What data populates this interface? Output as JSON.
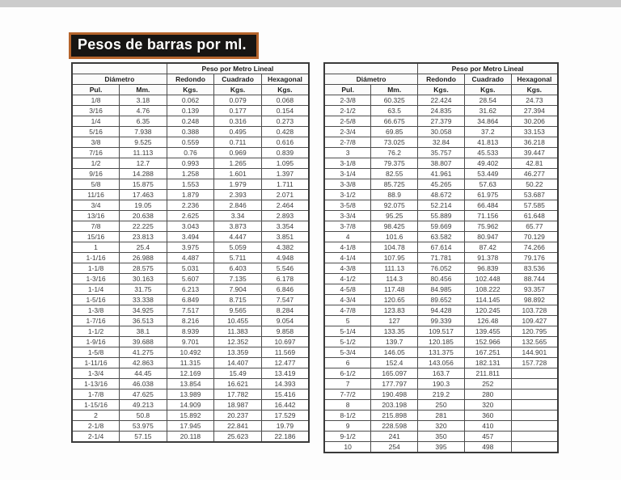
{
  "title": "Pesos de barras por ml.",
  "headers": {
    "group_title": "Peso por Metro Lineal",
    "diameter": "Diámetro",
    "round": "Redondo",
    "square": "Cuadrado",
    "hex": "Hexagonal",
    "sub": [
      "Pul.",
      "Mm.",
      "Kgs.",
      "Kgs.",
      "Kgs."
    ]
  },
  "colors": {
    "title_bg": "#171513",
    "title_border": "#b5642c",
    "title_text": "#ffffff",
    "table_border": "#4d4d4d",
    "top_strip": "#cccccc"
  },
  "left_table": {
    "rows": [
      [
        "1/8",
        "3.18",
        "0.062",
        "0.079",
        "0.068"
      ],
      [
        "3/16",
        "4.76",
        "0.139",
        "0.177",
        "0.154"
      ],
      [
        "1/4",
        "6.35",
        "0.248",
        "0.316",
        "0.273"
      ],
      [
        "5/16",
        "7.938",
        "0.388",
        "0.495",
        "0.428"
      ],
      [
        "3/8",
        "9.525",
        "0.559",
        "0.711",
        "0.616"
      ],
      [
        "7/16",
        "11.113",
        "0.76",
        "0.969",
        "0.839"
      ],
      [
        "1/2",
        "12.7",
        "0.993",
        "1.265",
        "1.095"
      ],
      [
        "9/16",
        "14.288",
        "1.258",
        "1.601",
        "1.397"
      ],
      [
        "5/8",
        "15.875",
        "1.553",
        "1.979",
        "1.711"
      ],
      [
        "11/16",
        "17.463",
        "1.879",
        "2.393",
        "2.071"
      ],
      [
        "3/4",
        "19.05",
        "2.236",
        "2.846",
        "2.464"
      ],
      [
        "13/16",
        "20.638",
        "2.625",
        "3.34",
        "2.893"
      ],
      [
        "7/8",
        "22.225",
        "3.043",
        "3.873",
        "3.354"
      ],
      [
        "15/16",
        "23.813",
        "3.494",
        "4.447",
        "3.851"
      ],
      [
        "1",
        "25.4",
        "3.975",
        "5.059",
        "4.382"
      ],
      [
        "1-1/16",
        "26.988",
        "4.487",
        "5.711",
        "4.948"
      ],
      [
        "1-1/8",
        "28.575",
        "5.031",
        "6.403",
        "5.546"
      ],
      [
        "1-3/16",
        "30.163",
        "5.607",
        "7.135",
        "6.178"
      ],
      [
        "1-1/4",
        "31.75",
        "6.213",
        "7.904",
        "6.846"
      ],
      [
        "1-5/16",
        "33.338",
        "6.849",
        "8.715",
        "7.547"
      ],
      [
        "1-3/8",
        "34.925",
        "7.517",
        "9.565",
        "8.284"
      ],
      [
        "1-7/16",
        "36.513",
        "8.216",
        "10.455",
        "9.054"
      ],
      [
        "1-1/2",
        "38.1",
        "8.939",
        "11.383",
        "9.858"
      ],
      [
        "1-9/16",
        "39.688",
        "9.701",
        "12.352",
        "10.697"
      ],
      [
        "1-5/8",
        "41.275",
        "10.492",
        "13.359",
        "11.569"
      ],
      [
        "1-11/16",
        "42.863",
        "11.315",
        "14.407",
        "12.477"
      ],
      [
        "1-3/4",
        "44.45",
        "12.169",
        "15.49",
        "13.419"
      ],
      [
        "1-13/16",
        "46.038",
        "13.854",
        "16.621",
        "14.393"
      ],
      [
        "1-7/8",
        "47.625",
        "13.989",
        "17.782",
        "15.416"
      ],
      [
        "1-15/16",
        "49.213",
        "14.909",
        "18.987",
        "16.442"
      ],
      [
        "2",
        "50.8",
        "15.892",
        "20.237",
        "17.529"
      ],
      [
        "2-1/8",
        "53.975",
        "17.945",
        "22.841",
        "19.79"
      ],
      [
        "2-1/4",
        "57.15",
        "20.118",
        "25.623",
        "22.186"
      ]
    ]
  },
  "right_table": {
    "rows": [
      [
        "2-3/8",
        "60.325",
        "22.424",
        "28.54",
        "24.73"
      ],
      [
        "2-1/2",
        "63.5",
        "24.835",
        "31.62",
        "27.394"
      ],
      [
        "2-5/8",
        "66.675",
        "27.379",
        "34.864",
        "30.206"
      ],
      [
        "2-3/4",
        "69.85",
        "30.058",
        "37.2",
        "33.153"
      ],
      [
        "2-7/8",
        "73.025",
        "32.84",
        "41.813",
        "36.218"
      ],
      [
        "3",
        "76.2",
        "35.757",
        "45.533",
        "39.447"
      ],
      [
        "3-1/8",
        "79.375",
        "38.807",
        "49.402",
        "42.81"
      ],
      [
        "3-1/4",
        "82.55",
        "41.961",
        "53.449",
        "46.277"
      ],
      [
        "3-3/8",
        "85.725",
        "45.265",
        "57.63",
        "50.22"
      ],
      [
        "3-1/2",
        "88.9",
        "48.672",
        "61.975",
        "53.687"
      ],
      [
        "3-5/8",
        "92.075",
        "52.214",
        "66.484",
        "57.585"
      ],
      [
        "3-3/4",
        "95.25",
        "55.889",
        "71.156",
        "61.648"
      ],
      [
        "3-7/8",
        "98.425",
        "59.669",
        "75.962",
        "65.77"
      ],
      [
        "4",
        "101.6",
        "63.582",
        "80.947",
        "70.129"
      ],
      [
        "4-1/8",
        "104.78",
        "67.614",
        "87.42",
        "74.266"
      ],
      [
        "4-1/4",
        "107.95",
        "71.781",
        "91.378",
        "79.176"
      ],
      [
        "4-3/8",
        "111.13",
        "76.052",
        "96.839",
        "83.536"
      ],
      [
        "4-1/2",
        "114.3",
        "80.456",
        "102.448",
        "88.744"
      ],
      [
        "4-5/8",
        "117.48",
        "84.985",
        "108.222",
        "93.357"
      ],
      [
        "4-3/4",
        "120.65",
        "89.652",
        "114.145",
        "98.892"
      ],
      [
        "4-7/8",
        "123.83",
        "94.428",
        "120.245",
        "103.728"
      ],
      [
        "5",
        "127",
        "99.339",
        "126.48",
        "109.427"
      ],
      [
        "5-1/4",
        "133.35",
        "109.517",
        "139.455",
        "120.795"
      ],
      [
        "5-1/2",
        "139.7",
        "120.185",
        "152.966",
        "132.565"
      ],
      [
        "5-3/4",
        "146.05",
        "131.375",
        "167.251",
        "144.901"
      ],
      [
        "6",
        "152.4",
        "143.056",
        "182.131",
        "157.728"
      ],
      [
        "6-1/2",
        "165.097",
        "163.7",
        "211.811",
        ""
      ],
      [
        "7",
        "177.797",
        "190.3",
        "252",
        ""
      ],
      [
        "7-7/2",
        "190.498",
        "219.2",
        "280",
        ""
      ],
      [
        "8",
        "203.198",
        "250",
        "320",
        ""
      ],
      [
        "8-1/2",
        "215.898",
        "281",
        "360",
        ""
      ],
      [
        "9",
        "228.598",
        "320",
        "410",
        ""
      ],
      [
        "9-1/2",
        "241",
        "350",
        "457",
        ""
      ],
      [
        "10",
        "254",
        "395",
        "498",
        ""
      ]
    ]
  }
}
